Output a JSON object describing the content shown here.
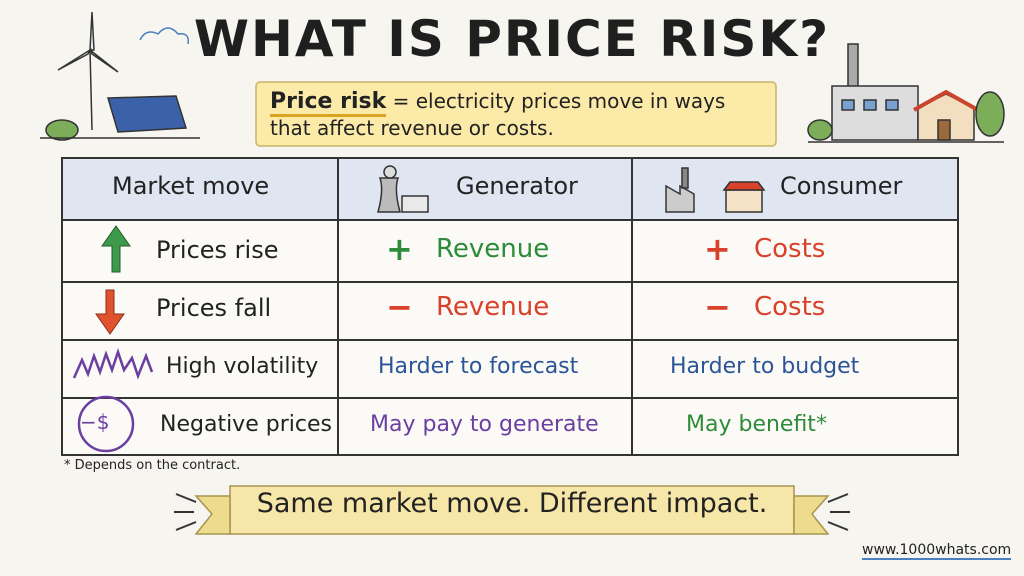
{
  "header": {
    "title": "WHAT IS PRICE RISK?"
  },
  "definition": {
    "term": "Price risk",
    "text": "= electricity prices move in ways that affect revenue or costs."
  },
  "table": {
    "headers": [
      "Market move",
      "Generator",
      "Consumer"
    ],
    "rows": [
      {
        "market_move": "Prices rise",
        "generator": {
          "sign": "+",
          "text": "Revenue"
        },
        "consumer": {
          "sign": "+",
          "text": "Costs"
        }
      },
      {
        "market_move": "Prices fall",
        "generator": {
          "sign": "−",
          "text": "Revenue"
        },
        "consumer": {
          "sign": "−",
          "text": "Costs"
        }
      },
      {
        "market_move": "High volatility",
        "generator": {
          "text": "Harder to forecast"
        },
        "consumer": {
          "text": "Harder to budget"
        }
      },
      {
        "icon_text": "−$",
        "market_move": "Negative prices",
        "generator": {
          "text": "May pay to generate"
        },
        "consumer": {
          "text": "May benefit*"
        }
      }
    ]
  },
  "footnote": "* Depends on the contract.",
  "banner": "Same market move. Different impact.",
  "url": "www.1000whats.com"
}
